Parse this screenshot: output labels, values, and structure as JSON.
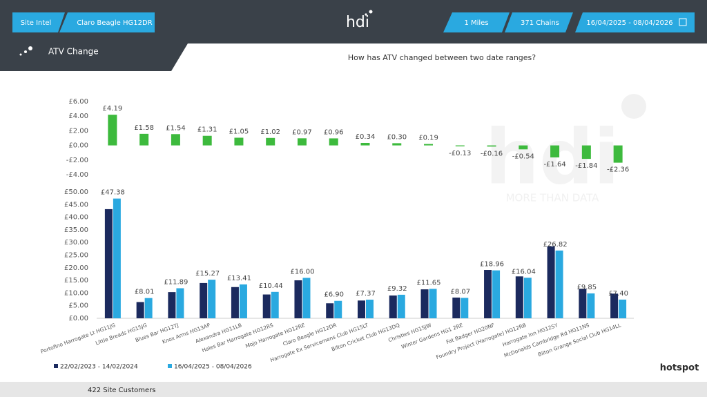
{
  "header": {
    "site_intel": "Site Intel",
    "site": "Claro Beagle HG12DR",
    "logo": "hdi",
    "radius": "1 Miles",
    "chains": "371 Chains",
    "date_range": "16/04/2025 - 08/04/2026"
  },
  "panel": {
    "title": "ATV Change",
    "question": "How has ATV changed between two date ranges?"
  },
  "watermark": {
    "logo": "hdi",
    "tagline": "MORE THAN DATA"
  },
  "footer": {
    "customers": "422 Site Customers",
    "brand": "hotspot"
  },
  "chart_data": [
    {
      "type": "bar",
      "color": "#3dba3d",
      "values": [
        4.19,
        1.58,
        1.54,
        1.31,
        1.05,
        1.02,
        0.97,
        0.96,
        0.34,
        0.3,
        0.19,
        -0.13,
        -0.16,
        -0.54,
        -1.64,
        -1.84,
        -2.36
      ],
      "value_labels": [
        "£4.19",
        "£1.58",
        "£1.54",
        "£1.31",
        "£1.05",
        "£1.02",
        "£0.97",
        "£0.96",
        "£0.34",
        "£0.30",
        "£0.19",
        "-£0.13",
        "-£0.16",
        "-£0.54",
        "-£1.64",
        "-£1.84",
        "-£2.36"
      ],
      "ylim": [
        -4,
        6
      ],
      "yticks": [
        {
          "value": 6,
          "label": "£6.00"
        },
        {
          "value": 4,
          "label": "£4.00"
        },
        {
          "value": 2,
          "label": "£2.00"
        },
        {
          "value": 0,
          "label": "£0.00"
        },
        {
          "value": -2,
          "label": "-£2.00"
        },
        {
          "value": -4,
          "label": "-£4.00"
        }
      ]
    },
    {
      "type": "bar",
      "categories": [
        "Portofino Harrogate Lt HG11JG",
        "Little Breads HG15JG",
        "Blues Bar HG12TJ",
        "Knox Arms HG13AP",
        "Alexandra HG11LB",
        "Hales Bar Harrogate HG12RS",
        "Mojo Harrogate HG12RE",
        "Claro Beagle HG12DR",
        "Harrogate Ex Servicemens Club HG15LT",
        "Bilton Cricket Club HG13DQ",
        "Christies HG15JW",
        "Winter Gardens HG1 2RE",
        "Fat Badger HG20NF",
        "Foundry Project (Harrogate) HG12RB",
        "Harrogate Inn HG12SY",
        "McDonalds Cambridge Rd HG11NS",
        "Bilton Grange Social Club HG14LL"
      ],
      "series": [
        {
          "name": "22/02/2023 - 14/02/2024",
          "color": "#1b2a5e",
          "values": [
            43.19,
            6.43,
            10.35,
            13.96,
            12.36,
            9.42,
            15.03,
            5.94,
            7.03,
            9.02,
            11.46,
            8.2,
            19.12,
            16.58,
            28.46,
            11.69,
            9.76
          ]
        },
        {
          "name": "16/04/2025 - 08/04/2026",
          "color": "#2aa9e0",
          "values": [
            47.38,
            8.01,
            11.89,
            15.27,
            13.41,
            10.44,
            16.0,
            6.9,
            7.37,
            9.32,
            11.65,
            8.07,
            18.96,
            16.04,
            26.82,
            9.85,
            7.4
          ],
          "value_labels": [
            "£47.38",
            "£8.01",
            "£11.89",
            "£15.27",
            "£13.41",
            "£10.44",
            "£16.00",
            "£6.90",
            "£7.37",
            "£9.32",
            "£11.65",
            "£8.07",
            "£18.96",
            "£16.04",
            "£26.82",
            "£9.85",
            "£7.40"
          ]
        }
      ],
      "ylim": [
        0,
        50
      ],
      "yticks": [
        {
          "value": 50,
          "label": "£50.00"
        },
        {
          "value": 45,
          "label": "£45.00"
        },
        {
          "value": 40,
          "label": "£40.00"
        },
        {
          "value": 35,
          "label": "£35.00"
        },
        {
          "value": 30,
          "label": "£30.00"
        },
        {
          "value": 25,
          "label": "£25.00"
        },
        {
          "value": 20,
          "label": "£20.00"
        },
        {
          "value": 15,
          "label": "£15.00"
        },
        {
          "value": 10,
          "label": "£10.00"
        },
        {
          "value": 5,
          "label": "£5.00"
        },
        {
          "value": 0,
          "label": "£0.00"
        }
      ]
    }
  ]
}
